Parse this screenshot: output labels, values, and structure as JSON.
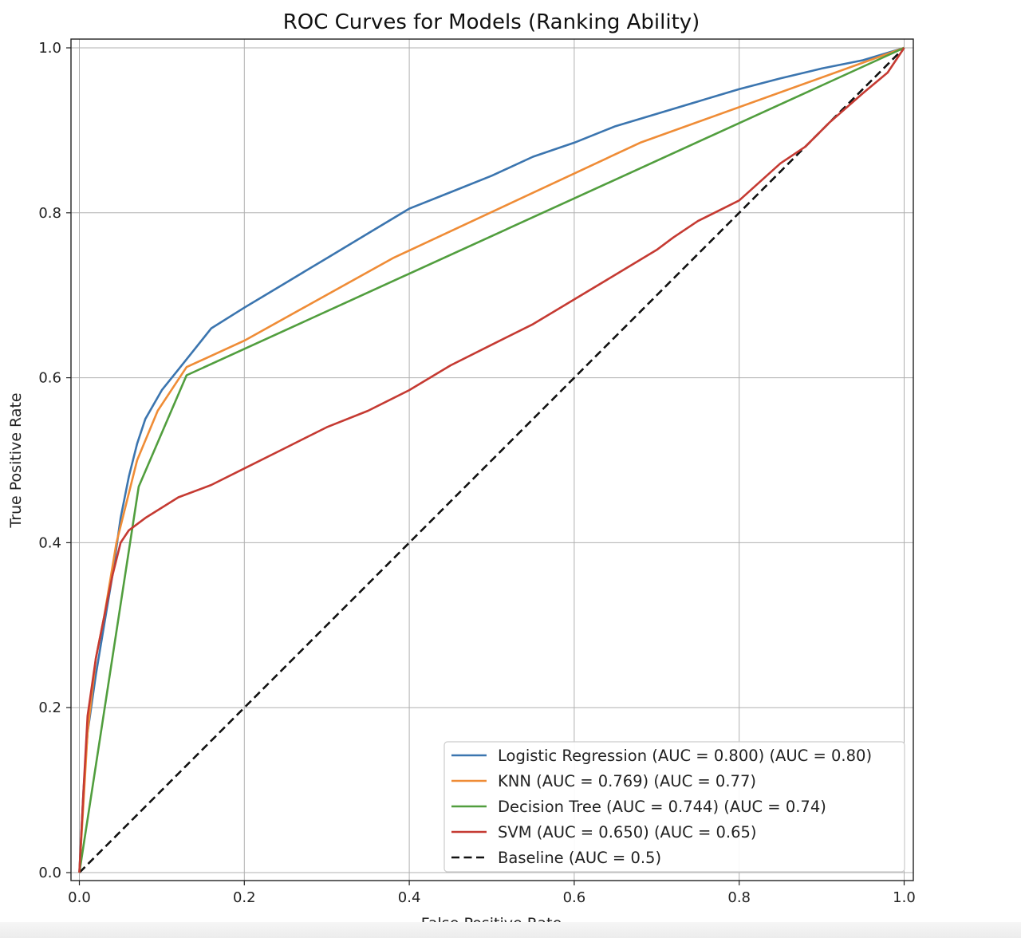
{
  "chart_data": {
    "type": "line",
    "title": "ROC Curves for Models (Ranking Ability)",
    "xlabel": "False Positive Rate",
    "ylabel": "True Positive Rate",
    "xlim": [
      0.0,
      1.0
    ],
    "ylim": [
      0.0,
      1.0
    ],
    "x_ticks": [
      "0.0",
      "0.2",
      "0.4",
      "0.6",
      "0.8",
      "1.0"
    ],
    "y_ticks": [
      "0.0",
      "0.2",
      "0.4",
      "0.6",
      "0.8",
      "1.0"
    ],
    "grid": true,
    "legend_position": "lower-right",
    "series": [
      {
        "name": "Logistic Regression (AUC = 0.800) (AUC = 0.80)",
        "color": "#3b75af",
        "line_style": "solid",
        "points": [
          [
            0,
            0
          ],
          [
            0.005,
            0.1
          ],
          [
            0.01,
            0.17
          ],
          [
            0.02,
            0.24
          ],
          [
            0.03,
            0.3
          ],
          [
            0.04,
            0.36
          ],
          [
            0.05,
            0.43
          ],
          [
            0.06,
            0.48
          ],
          [
            0.07,
            0.52
          ],
          [
            0.08,
            0.55
          ],
          [
            0.1,
            0.585
          ],
          [
            0.12,
            0.61
          ],
          [
            0.14,
            0.635
          ],
          [
            0.16,
            0.66
          ],
          [
            0.2,
            0.685
          ],
          [
            0.25,
            0.715
          ],
          [
            0.3,
            0.745
          ],
          [
            0.35,
            0.775
          ],
          [
            0.4,
            0.805
          ],
          [
            0.45,
            0.825
          ],
          [
            0.5,
            0.845
          ],
          [
            0.55,
            0.868
          ],
          [
            0.6,
            0.885
          ],
          [
            0.65,
            0.905
          ],
          [
            0.7,
            0.92
          ],
          [
            0.75,
            0.935
          ],
          [
            0.8,
            0.95
          ],
          [
            0.85,
            0.963
          ],
          [
            0.9,
            0.975
          ],
          [
            0.95,
            0.985
          ],
          [
            1.0,
            1.0
          ]
        ]
      },
      {
        "name": "KNN (AUC = 0.769) (AUC = 0.77)",
        "color": "#ef8c36",
        "line_style": "solid",
        "points": [
          [
            0,
            0
          ],
          [
            0.01,
            0.17
          ],
          [
            0.02,
            0.26
          ],
          [
            0.03,
            0.31
          ],
          [
            0.045,
            0.4
          ],
          [
            0.07,
            0.5
          ],
          [
            0.095,
            0.56
          ],
          [
            0.13,
            0.613
          ],
          [
            0.2,
            0.645
          ],
          [
            0.38,
            0.745
          ],
          [
            0.68,
            0.885
          ],
          [
            1.0,
            1.0
          ]
        ]
      },
      {
        "name": "Decision Tree (AUC = 0.744) (AUC = 0.74)",
        "color": "#519e3e",
        "line_style": "solid",
        "points": [
          [
            0,
            0
          ],
          [
            0.072,
            0.468
          ],
          [
            0.13,
            0.603
          ],
          [
            1.0,
            1.0
          ]
        ]
      },
      {
        "name": "SVM (AUC = 0.650) (AUC = 0.65)",
        "color": "#c53a32",
        "line_style": "solid",
        "points": [
          [
            0,
            0
          ],
          [
            0.005,
            0.1
          ],
          [
            0.01,
            0.19
          ],
          [
            0.02,
            0.26
          ],
          [
            0.03,
            0.31
          ],
          [
            0.04,
            0.36
          ],
          [
            0.05,
            0.4
          ],
          [
            0.06,
            0.415
          ],
          [
            0.08,
            0.43
          ],
          [
            0.12,
            0.455
          ],
          [
            0.16,
            0.47
          ],
          [
            0.2,
            0.49
          ],
          [
            0.25,
            0.515
          ],
          [
            0.3,
            0.54
          ],
          [
            0.35,
            0.56
          ],
          [
            0.4,
            0.585
          ],
          [
            0.45,
            0.615
          ],
          [
            0.5,
            0.64
          ],
          [
            0.55,
            0.665
          ],
          [
            0.6,
            0.695
          ],
          [
            0.65,
            0.725
          ],
          [
            0.7,
            0.755
          ],
          [
            0.72,
            0.77
          ],
          [
            0.75,
            0.79
          ],
          [
            0.8,
            0.815
          ],
          [
            0.85,
            0.86
          ],
          [
            0.88,
            0.88
          ],
          [
            0.91,
            0.91
          ],
          [
            0.95,
            0.945
          ],
          [
            0.98,
            0.97
          ],
          [
            1.0,
            1.0
          ]
        ]
      },
      {
        "name": "Baseline (AUC = 0.5)",
        "color": "#111111",
        "line_style": "dashed",
        "points": [
          [
            0,
            0
          ],
          [
            1.0,
            1.0
          ]
        ]
      }
    ]
  }
}
